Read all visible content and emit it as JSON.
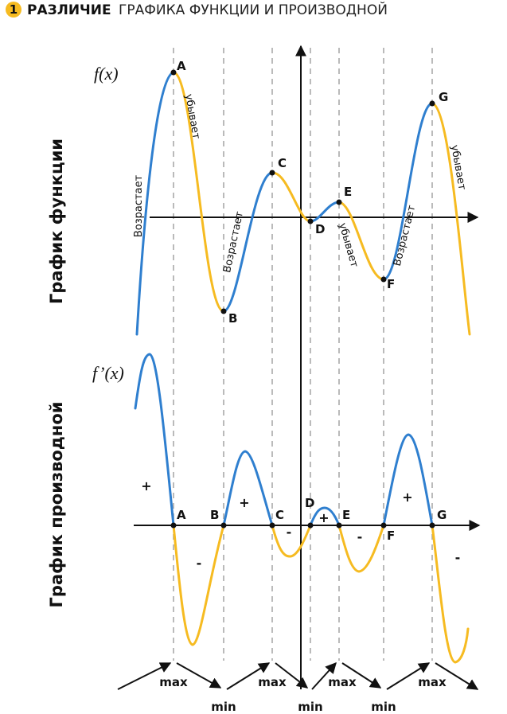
{
  "title": {
    "number": "1",
    "bold": "РАЗЛИЧИЕ",
    "rest": "ГРАФИКА ФУНКЦИИ И ПРОИЗВОДНОЙ"
  },
  "side_labels": {
    "function": "График функции",
    "derivative": "График производной"
  },
  "function_label": "f(x)",
  "derivative_label": "f’(x)",
  "colors": {
    "increasing": "#2f7fcf",
    "decreasing": "#f6bb21",
    "axis": "#111111",
    "guide": "#aaaaaa"
  },
  "points": [
    "A",
    "B",
    "C",
    "D",
    "E",
    "F",
    "G"
  ],
  "trend_labels": {
    "increasing": "Возрастает",
    "decreasing": "убывает"
  },
  "signs": {
    "plus": "+",
    "minus": "-"
  },
  "extrema": {
    "max": "max",
    "min": "min"
  }
}
